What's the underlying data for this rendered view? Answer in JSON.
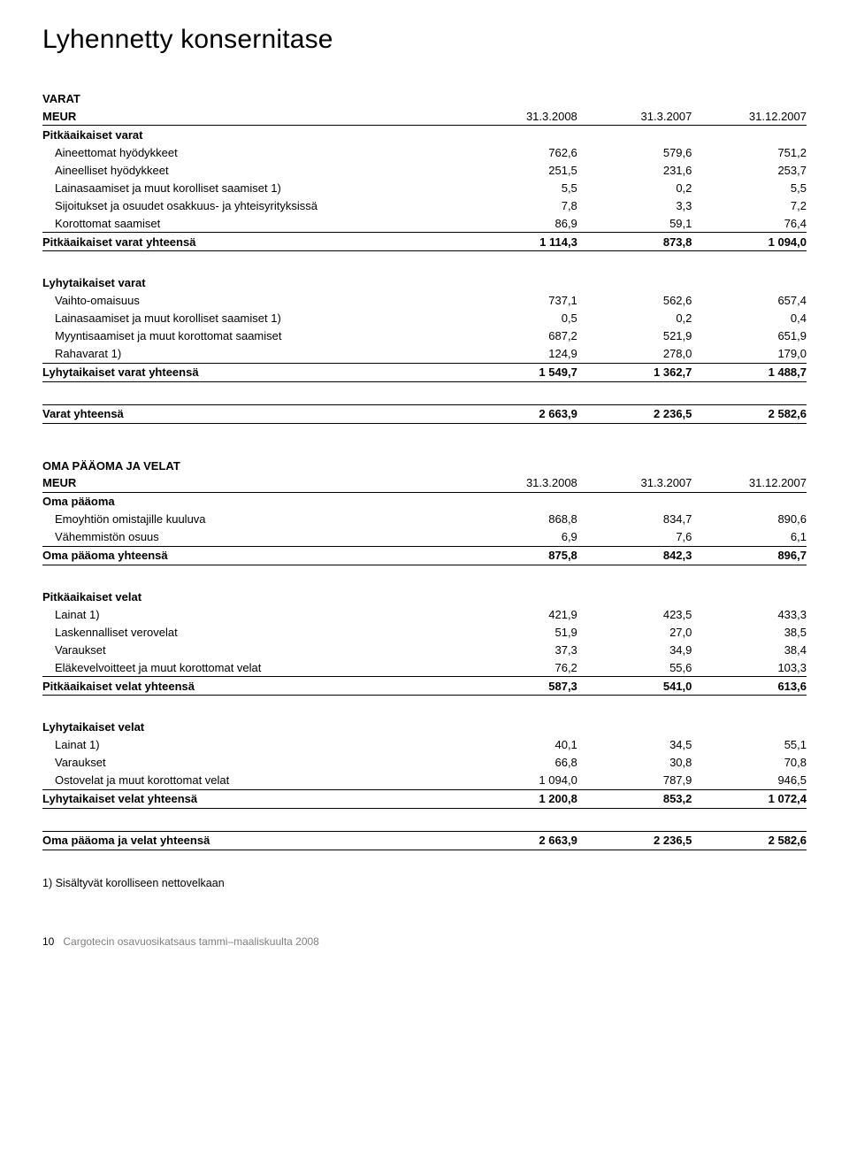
{
  "page_title": "Lyhennetty konsernitase",
  "col_dates": [
    "31.3.2008",
    "31.3.2007",
    "31.12.2007"
  ],
  "assets": {
    "heading": "VARAT",
    "meur": "MEUR",
    "longterm": {
      "heading": "Pitkäaikaiset varat",
      "rows": [
        {
          "label": "Aineettomat hyödykkeet",
          "v": [
            "762,6",
            "579,6",
            "751,2"
          ]
        },
        {
          "label": "Aineelliset hyödykkeet",
          "v": [
            "251,5",
            "231,6",
            "253,7"
          ]
        },
        {
          "label": "Lainasaamiset ja muut korolliset saamiset 1)",
          "v": [
            "5,5",
            "0,2",
            "5,5"
          ]
        },
        {
          "label": "Sijoitukset ja osuudet osakkuus- ja yhteisyrityksissä",
          "v": [
            "7,8",
            "3,3",
            "7,2"
          ]
        },
        {
          "label": "Korottomat saamiset",
          "v": [
            "86,9",
            "59,1",
            "76,4"
          ]
        }
      ],
      "total": {
        "label": "Pitkäaikaiset varat yhteensä",
        "v": [
          "1 114,3",
          "873,8",
          "1 094,0"
        ]
      }
    },
    "shortterm": {
      "heading": "Lyhytaikaiset varat",
      "rows": [
        {
          "label": "Vaihto-omaisuus",
          "v": [
            "737,1",
            "562,6",
            "657,4"
          ]
        },
        {
          "label": "Lainasaamiset ja muut korolliset saamiset 1)",
          "v": [
            "0,5",
            "0,2",
            "0,4"
          ]
        },
        {
          "label": "Myyntisaamiset ja muut korottomat saamiset",
          "v": [
            "687,2",
            "521,9",
            "651,9"
          ]
        },
        {
          "label": "Rahavarat 1)",
          "v": [
            "124,9",
            "278,0",
            "179,0"
          ]
        }
      ],
      "total": {
        "label": "Lyhytaikaiset varat yhteensä",
        "v": [
          "1 549,7",
          "1 362,7",
          "1 488,7"
        ]
      }
    },
    "grand_total": {
      "label": "Varat yhteensä",
      "v": [
        "2 663,9",
        "2 236,5",
        "2 582,6"
      ]
    }
  },
  "liab": {
    "heading": "OMA PÄÄOMA JA VELAT",
    "meur": "MEUR",
    "equity": {
      "heading": "Oma pääoma",
      "rows": [
        {
          "label": "Emoyhtiön omistajille kuuluva",
          "v": [
            "868,8",
            "834,7",
            "890,6"
          ]
        },
        {
          "label": "Vähemmistön osuus",
          "v": [
            "6,9",
            "7,6",
            "6,1"
          ]
        }
      ],
      "total": {
        "label": "Oma pääoma yhteensä",
        "v": [
          "875,8",
          "842,3",
          "896,7"
        ]
      }
    },
    "longterm": {
      "heading": "Pitkäaikaiset velat",
      "rows": [
        {
          "label": "Lainat 1)",
          "v": [
            "421,9",
            "423,5",
            "433,3"
          ]
        },
        {
          "label": "Laskennalliset verovelat",
          "v": [
            "51,9",
            "27,0",
            "38,5"
          ]
        },
        {
          "label": "Varaukset",
          "v": [
            "37,3",
            "34,9",
            "38,4"
          ]
        },
        {
          "label": "Eläkevelvoitteet ja muut korottomat velat",
          "v": [
            "76,2",
            "55,6",
            "103,3"
          ]
        }
      ],
      "total": {
        "label": "Pitkäaikaiset velat yhteensä",
        "v": [
          "587,3",
          "541,0",
          "613,6"
        ]
      }
    },
    "shortterm": {
      "heading": "Lyhytaikaiset velat",
      "rows": [
        {
          "label": "Lainat 1)",
          "v": [
            "40,1",
            "34,5",
            "55,1"
          ]
        },
        {
          "label": "Varaukset",
          "v": [
            "66,8",
            "30,8",
            "70,8"
          ]
        },
        {
          "label": "Ostovelat ja muut korottomat velat",
          "v": [
            "1 094,0",
            "787,9",
            "946,5"
          ]
        }
      ],
      "total": {
        "label": "Lyhytaikaiset velat yhteensä",
        "v": [
          "1 200,8",
          "853,2",
          "1 072,4"
        ]
      }
    },
    "grand_total": {
      "label": "Oma pääoma ja velat yhteensä",
      "v": [
        "2 663,9",
        "2 236,5",
        "2 582,6"
      ]
    }
  },
  "footnote": "1) Sisältyvät korolliseen nettovelkaan",
  "footer_page": "10",
  "footer_text": "Cargotecin osavuosikatsaus tammi–maaliskuulta 2008"
}
